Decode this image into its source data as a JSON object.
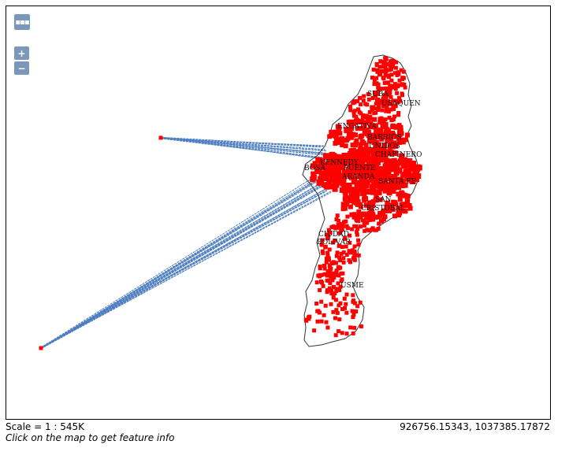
{
  "map": {
    "controls": {
      "layer_switcher_glyph": "▪▪▪",
      "zoom_in_glyph": "+",
      "zoom_out_glyph": "−",
      "layer_switcher_icon": "layer-switcher-icon",
      "zoom_in_icon": "plus-icon",
      "zoom_out_icon": "minus-icon"
    },
    "colors": {
      "points": "#ff0000",
      "lines": "#4f7fc0",
      "boundary": "#333333",
      "controls": "#7b98bc"
    },
    "district_labels": [
      "SUBA",
      "USAQUEN",
      "ENGATIVA",
      "BARRIOS",
      "UNIDOS",
      "CHAPINERO",
      "KENNEDY",
      "BOSA",
      "PUENTE",
      "ARANDA",
      "SANTA FE",
      "SAN",
      "CRISTOBAL",
      "CIUDAD",
      "BOLIVAR",
      "USME"
    ]
  },
  "footer": {
    "scale": "Scale = 1 : 545K",
    "hint": "Click on the map to get feature info",
    "coordinates": "926756.15343, 1037385.17872"
  }
}
